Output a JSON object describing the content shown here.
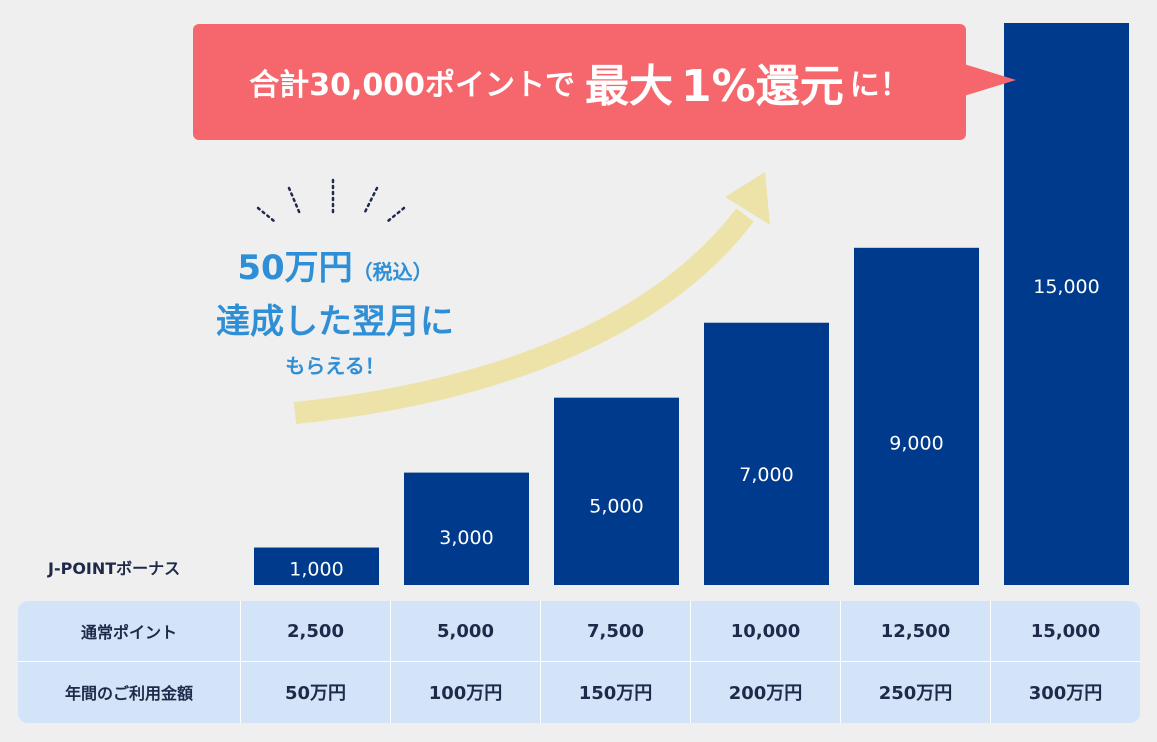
{
  "callout": {
    "part1": "合計30,000ポイントで",
    "part2": "最大",
    "part3": "1%還元",
    "part4": "に！"
  },
  "promo": {
    "line1_main": "50万円",
    "line1_paren": "（税込）",
    "line2": "達成した翌月に",
    "line3": "もらえる！"
  },
  "colors": {
    "bar": "#003a8c",
    "callout": "#f5676c",
    "promo_text": "#2e8fd6",
    "arrow": "#ede3a8",
    "table_bg": "#d3e4f8"
  },
  "chart_data": {
    "type": "bar",
    "series": [
      {
        "name": "J-POINTボーナス",
        "values": [
          1000,
          3000,
          5000,
          7000,
          9000,
          15000
        ]
      }
    ],
    "data_labels": [
      "1,000",
      "3,000",
      "5,000",
      "7,000",
      "9,000",
      "15,000"
    ],
    "ylim": [
      0,
      15000
    ]
  },
  "table": {
    "row1_label": "通常ポイント",
    "row1": [
      "2,500",
      "5,000",
      "7,500",
      "10,000",
      "12,500",
      "15,000"
    ],
    "row2_label": "年間のご利用金額",
    "row2": [
      "50万円",
      "100万円",
      "150万円",
      "200万円",
      "250万円",
      "300万円"
    ]
  }
}
